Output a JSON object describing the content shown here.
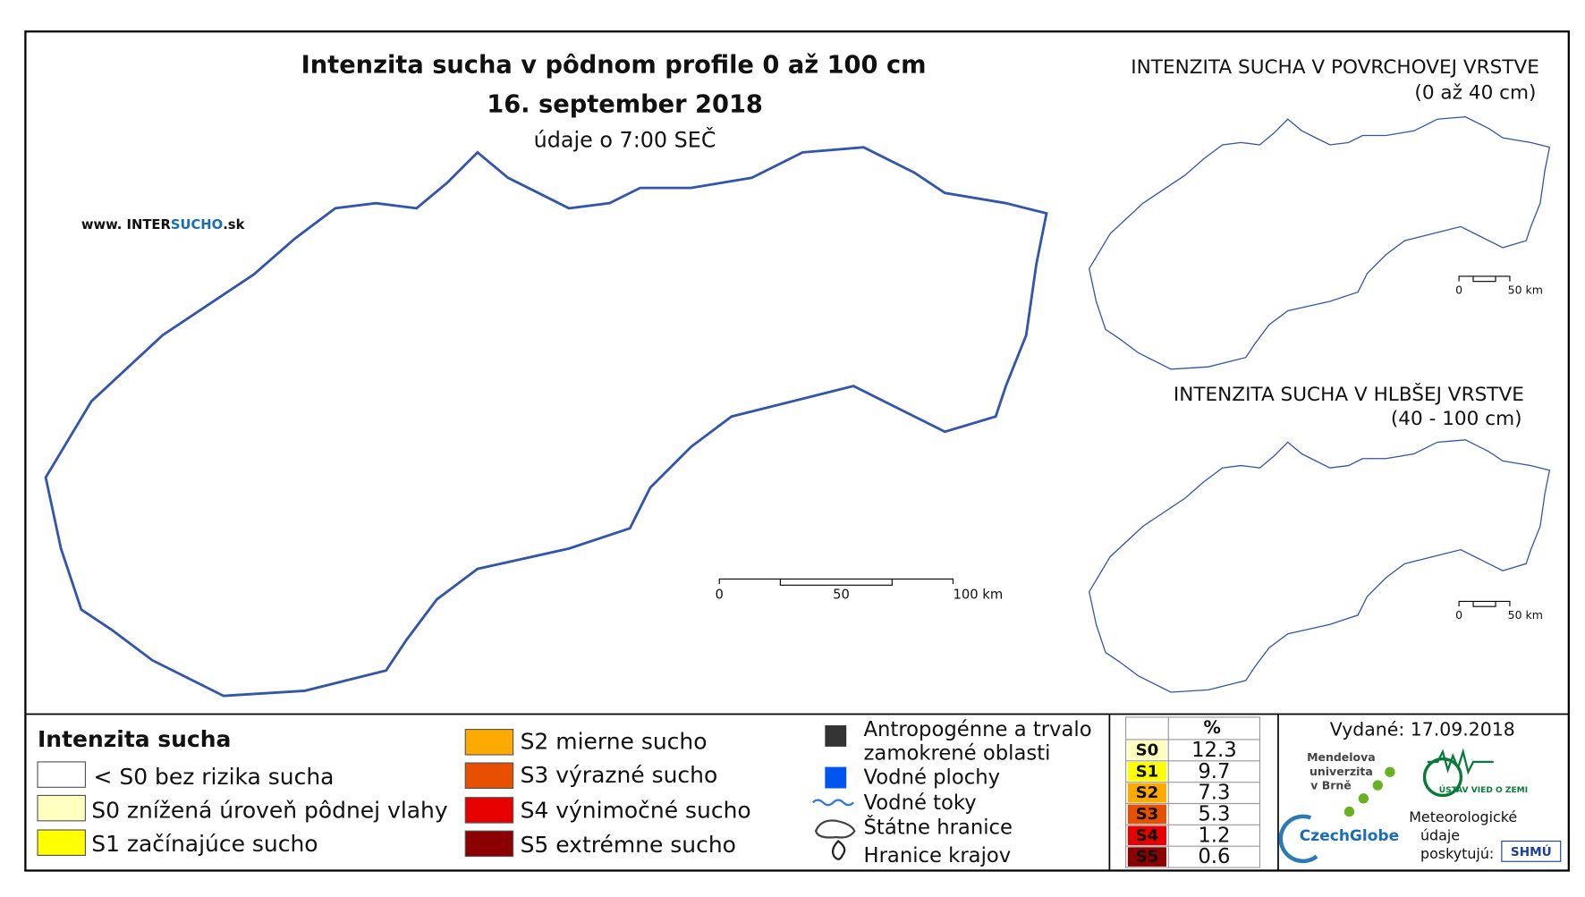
{
  "main_map": {
    "title": "Intenzita sucha v pôdnom profile 0 až 100 cm",
    "date": "16. september 2018",
    "time": "údaje o 7:00 SEČ",
    "website": {
      "prefix": "www. INTER",
      "highlight": "SUCHO",
      "suffix": ".sk"
    },
    "scale": [
      "0",
      "50",
      "100 km"
    ]
  },
  "surface_map": {
    "title": "INTENZITA SUCHA V POVRCHOVEJ VRSTVE",
    "depth": "(0 až 40 cm)",
    "scale": [
      "0",
      "50 km"
    ]
  },
  "deep_map": {
    "title": "INTENZITA SUCHA V HLBŠEJ VRSTVE",
    "depth": "(40 - 100 cm)",
    "scale": [
      "0",
      "50 km"
    ]
  },
  "legend": {
    "title": "Intenzita sucha",
    "classes": [
      {
        "label": "< S0 bez rizika sucha",
        "color": "#ffffff"
      },
      {
        "label": "S0 znížená úroveň pôdnej vlahy",
        "color": "#ffffc0"
      },
      {
        "label": "S1 začínajúce sucho",
        "color": "#ffff00"
      },
      {
        "label": "S2 mierne sucho",
        "color": "#ffaa00"
      },
      {
        "label": "S3 výrazné sucho",
        "color": "#e65000"
      },
      {
        "label": "S4 výnimočné sucho",
        "color": "#e60000"
      },
      {
        "label": "S5 extrémne sucho",
        "color": "#8b0000"
      }
    ],
    "symbols": {
      "anthropogenic": [
        "Antropogénne a trvalo",
        "zamokrené oblasti"
      ],
      "water_bodies": "Vodné plochy",
      "rivers": "Vodné toky",
      "state_border": "Štátne hranice",
      "region_border": "Hranice krajov"
    },
    "symbol_colors": {
      "anthropogenic": "#333333",
      "water": "#0055ee",
      "river": "#3377dd"
    }
  },
  "table": {
    "header": "%",
    "rows": [
      {
        "class": "S0",
        "percent": 12.3
      },
      {
        "class": "S1",
        "percent": 9.7
      },
      {
        "class": "S2",
        "percent": 7.3
      },
      {
        "class": "S3",
        "percent": 5.3
      },
      {
        "class": "S4",
        "percent": 1.2
      },
      {
        "class": "S5",
        "percent": 0.6
      }
    ]
  },
  "footer": {
    "issued": "Vydané: 17.09.2018",
    "mendel": [
      "Mendelova",
      "univerzita",
      "v Brně"
    ],
    "czechglobe": "CzechGlobe",
    "ustav": "ÚSTAV VIED O ZEMI",
    "meteo": [
      "Meteorologické",
      "údaje",
      "poskytujú:"
    ],
    "shmu": "SHMÚ"
  }
}
